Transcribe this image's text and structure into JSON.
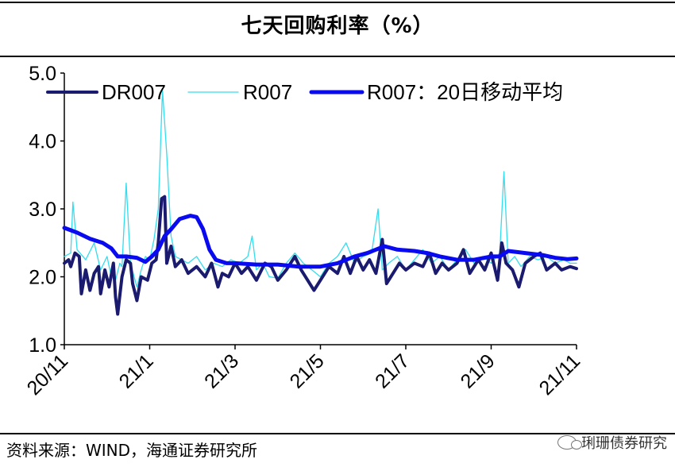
{
  "title": "七天回购利率（%）",
  "source": "资料来源：WIND，海通证券研究所",
  "watermark": "琍珊债券研究",
  "chart_data": {
    "type": "line",
    "ylim": [
      1.0,
      5.0
    ],
    "yticks": [
      "1.0",
      "2.0",
      "3.0",
      "4.0",
      "5.0"
    ],
    "x_range": [
      0,
      12
    ],
    "xticks": [
      {
        "label": "20/11",
        "pos": 0
      },
      {
        "label": "21/1",
        "pos": 2
      },
      {
        "label": "21/3",
        "pos": 4
      },
      {
        "label": "21/5",
        "pos": 6
      },
      {
        "label": "21/7",
        "pos": 8
      },
      {
        "label": "21/9",
        "pos": 10
      },
      {
        "label": "21/11",
        "pos": 12
      }
    ],
    "series": [
      {
        "name": "R007",
        "color": "#33DDEE",
        "points": [
          [
            0,
            2.3
          ],
          [
            0.15,
            2.35
          ],
          [
            0.2,
            3.1
          ],
          [
            0.3,
            2.4
          ],
          [
            0.5,
            2.25
          ],
          [
            0.7,
            2.5
          ],
          [
            0.85,
            2.1
          ],
          [
            1.0,
            2.3
          ],
          [
            1.1,
            2.0
          ],
          [
            1.2,
            1.95
          ],
          [
            1.3,
            2.2
          ],
          [
            1.35,
            2.15
          ],
          [
            1.45,
            3.38
          ],
          [
            1.55,
            2.2
          ],
          [
            1.7,
            1.85
          ],
          [
            1.8,
            2.1
          ],
          [
            1.9,
            2.3
          ],
          [
            2.0,
            2.25
          ],
          [
            2.1,
            2.55
          ],
          [
            2.2,
            3.0
          ],
          [
            2.3,
            4.75
          ],
          [
            2.4,
            3.8
          ],
          [
            2.5,
            2.6
          ],
          [
            2.6,
            2.3
          ],
          [
            2.75,
            2.25
          ],
          [
            2.9,
            2.2
          ],
          [
            3.1,
            2.3
          ],
          [
            3.3,
            2.1
          ],
          [
            3.5,
            2.2
          ],
          [
            3.7,
            2.15
          ],
          [
            3.9,
            2.25
          ],
          [
            4.1,
            2.2
          ],
          [
            4.3,
            2.3
          ],
          [
            4.4,
            2.6
          ],
          [
            4.5,
            2.1
          ],
          [
            4.65,
            2.2
          ],
          [
            4.8,
            2.0
          ],
          [
            5.0,
            1.98
          ],
          [
            5.2,
            2.2
          ],
          [
            5.4,
            2.35
          ],
          [
            5.6,
            2.2
          ],
          [
            5.8,
            2.1
          ],
          [
            6.0,
            2.0
          ],
          [
            6.2,
            2.2
          ],
          [
            6.4,
            2.3
          ],
          [
            6.6,
            2.5
          ],
          [
            6.8,
            2.2
          ],
          [
            7.0,
            2.3
          ],
          [
            7.2,
            2.35
          ],
          [
            7.35,
            3.0
          ],
          [
            7.45,
            2.1
          ],
          [
            7.6,
            2.2
          ],
          [
            7.8,
            2.3
          ],
          [
            8.0,
            2.1
          ],
          [
            8.2,
            2.25
          ],
          [
            8.4,
            2.4
          ],
          [
            8.6,
            2.2
          ],
          [
            8.8,
            2.3
          ],
          [
            9.0,
            2.1
          ],
          [
            9.2,
            2.25
          ],
          [
            9.4,
            2.4
          ],
          [
            9.6,
            2.2
          ],
          [
            9.8,
            2.3
          ],
          [
            10.0,
            2.2
          ],
          [
            10.2,
            2.35
          ],
          [
            10.3,
            3.55
          ],
          [
            10.4,
            2.2
          ],
          [
            10.55,
            2.3
          ],
          [
            10.7,
            2.15
          ],
          [
            10.9,
            2.3
          ],
          [
            11.1,
            2.25
          ],
          [
            11.3,
            2.3
          ],
          [
            11.5,
            2.2
          ],
          [
            11.7,
            2.25
          ],
          [
            11.85,
            2.2
          ],
          [
            12.0,
            2.2
          ]
        ]
      },
      {
        "name": "DR007",
        "color": "#1A1A6E",
        "points": [
          [
            0,
            2.2
          ],
          [
            0.1,
            2.25
          ],
          [
            0.15,
            2.15
          ],
          [
            0.25,
            2.35
          ],
          [
            0.35,
            2.3
          ],
          [
            0.4,
            1.75
          ],
          [
            0.5,
            2.1
          ],
          [
            0.6,
            1.8
          ],
          [
            0.7,
            2.05
          ],
          [
            0.8,
            2.15
          ],
          [
            0.85,
            1.75
          ],
          [
            0.95,
            2.1
          ],
          [
            1.05,
            1.85
          ],
          [
            1.15,
            2.2
          ],
          [
            1.2,
            1.7
          ],
          [
            1.25,
            1.45
          ],
          [
            1.35,
            2.0
          ],
          [
            1.45,
            2.25
          ],
          [
            1.55,
            2.2
          ],
          [
            1.6,
            1.9
          ],
          [
            1.7,
            1.65
          ],
          [
            1.8,
            2.0
          ],
          [
            1.95,
            1.95
          ],
          [
            2.05,
            2.2
          ],
          [
            2.15,
            2.25
          ],
          [
            2.2,
            2.5
          ],
          [
            2.28,
            3.15
          ],
          [
            2.35,
            3.18
          ],
          [
            2.4,
            2.2
          ],
          [
            2.5,
            2.45
          ],
          [
            2.6,
            2.15
          ],
          [
            2.75,
            2.25
          ],
          [
            2.9,
            2.05
          ],
          [
            3.1,
            2.15
          ],
          [
            3.3,
            2.0
          ],
          [
            3.45,
            2.2
          ],
          [
            3.6,
            1.85
          ],
          [
            3.7,
            2.05
          ],
          [
            3.85,
            2.0
          ],
          [
            4.0,
            2.2
          ],
          [
            4.15,
            2.05
          ],
          [
            4.3,
            2.15
          ],
          [
            4.5,
            1.95
          ],
          [
            4.7,
            2.2
          ],
          [
            4.85,
            2.15
          ],
          [
            5.0,
            1.95
          ],
          [
            5.2,
            2.1
          ],
          [
            5.4,
            2.3
          ],
          [
            5.55,
            2.1
          ],
          [
            5.7,
            1.95
          ],
          [
            5.85,
            1.8
          ],
          [
            6.0,
            1.95
          ],
          [
            6.2,
            2.15
          ],
          [
            6.4,
            2.05
          ],
          [
            6.55,
            2.3
          ],
          [
            6.7,
            2.05
          ],
          [
            6.85,
            2.3
          ],
          [
            7.0,
            2.1
          ],
          [
            7.15,
            2.25
          ],
          [
            7.3,
            2.05
          ],
          [
            7.45,
            2.55
          ],
          [
            7.55,
            1.9
          ],
          [
            7.7,
            2.05
          ],
          [
            7.85,
            2.2
          ],
          [
            8.0,
            2.1
          ],
          [
            8.2,
            2.2
          ],
          [
            8.4,
            2.15
          ],
          [
            8.55,
            2.35
          ],
          [
            8.7,
            2.05
          ],
          [
            8.85,
            2.2
          ],
          [
            9.0,
            2.1
          ],
          [
            9.2,
            2.2
          ],
          [
            9.35,
            2.4
          ],
          [
            9.5,
            2.05
          ],
          [
            9.7,
            2.25
          ],
          [
            9.85,
            2.1
          ],
          [
            10.0,
            2.35
          ],
          [
            10.15,
            1.95
          ],
          [
            10.25,
            2.5
          ],
          [
            10.35,
            2.2
          ],
          [
            10.5,
            2.1
          ],
          [
            10.65,
            1.85
          ],
          [
            10.8,
            2.2
          ],
          [
            11.0,
            2.3
          ],
          [
            11.15,
            2.35
          ],
          [
            11.3,
            2.1
          ],
          [
            11.5,
            2.2
          ],
          [
            11.65,
            2.1
          ],
          [
            11.85,
            2.15
          ],
          [
            12.0,
            2.12
          ]
        ]
      },
      {
        "name": "R007：20日移动平均",
        "color": "#0A0AF0",
        "points": [
          [
            0,
            2.72
          ],
          [
            0.3,
            2.65
          ],
          [
            0.6,
            2.56
          ],
          [
            0.9,
            2.5
          ],
          [
            1.1,
            2.42
          ],
          [
            1.25,
            2.3
          ],
          [
            1.45,
            2.3
          ],
          [
            1.7,
            2.28
          ],
          [
            1.9,
            2.22
          ],
          [
            2.05,
            2.3
          ],
          [
            2.2,
            2.4
          ],
          [
            2.35,
            2.6
          ],
          [
            2.5,
            2.7
          ],
          [
            2.7,
            2.85
          ],
          [
            2.95,
            2.9
          ],
          [
            3.1,
            2.88
          ],
          [
            3.25,
            2.7
          ],
          [
            3.4,
            2.4
          ],
          [
            3.55,
            2.25
          ],
          [
            3.8,
            2.2
          ],
          [
            4.0,
            2.2
          ],
          [
            4.5,
            2.18
          ],
          [
            5.0,
            2.18
          ],
          [
            5.5,
            2.15
          ],
          [
            6.0,
            2.15
          ],
          [
            6.4,
            2.2
          ],
          [
            6.8,
            2.3
          ],
          [
            7.1,
            2.35
          ],
          [
            7.3,
            2.4
          ],
          [
            7.5,
            2.45
          ],
          [
            7.8,
            2.4
          ],
          [
            8.2,
            2.38
          ],
          [
            8.5,
            2.35
          ],
          [
            8.8,
            2.3
          ],
          [
            9.2,
            2.25
          ],
          [
            9.6,
            2.25
          ],
          [
            10.0,
            2.3
          ],
          [
            10.2,
            2.3
          ],
          [
            10.4,
            2.38
          ],
          [
            10.8,
            2.35
          ],
          [
            11.2,
            2.32
          ],
          [
            11.5,
            2.28
          ],
          [
            11.8,
            2.26
          ],
          [
            12.0,
            2.27
          ]
        ]
      }
    ]
  }
}
